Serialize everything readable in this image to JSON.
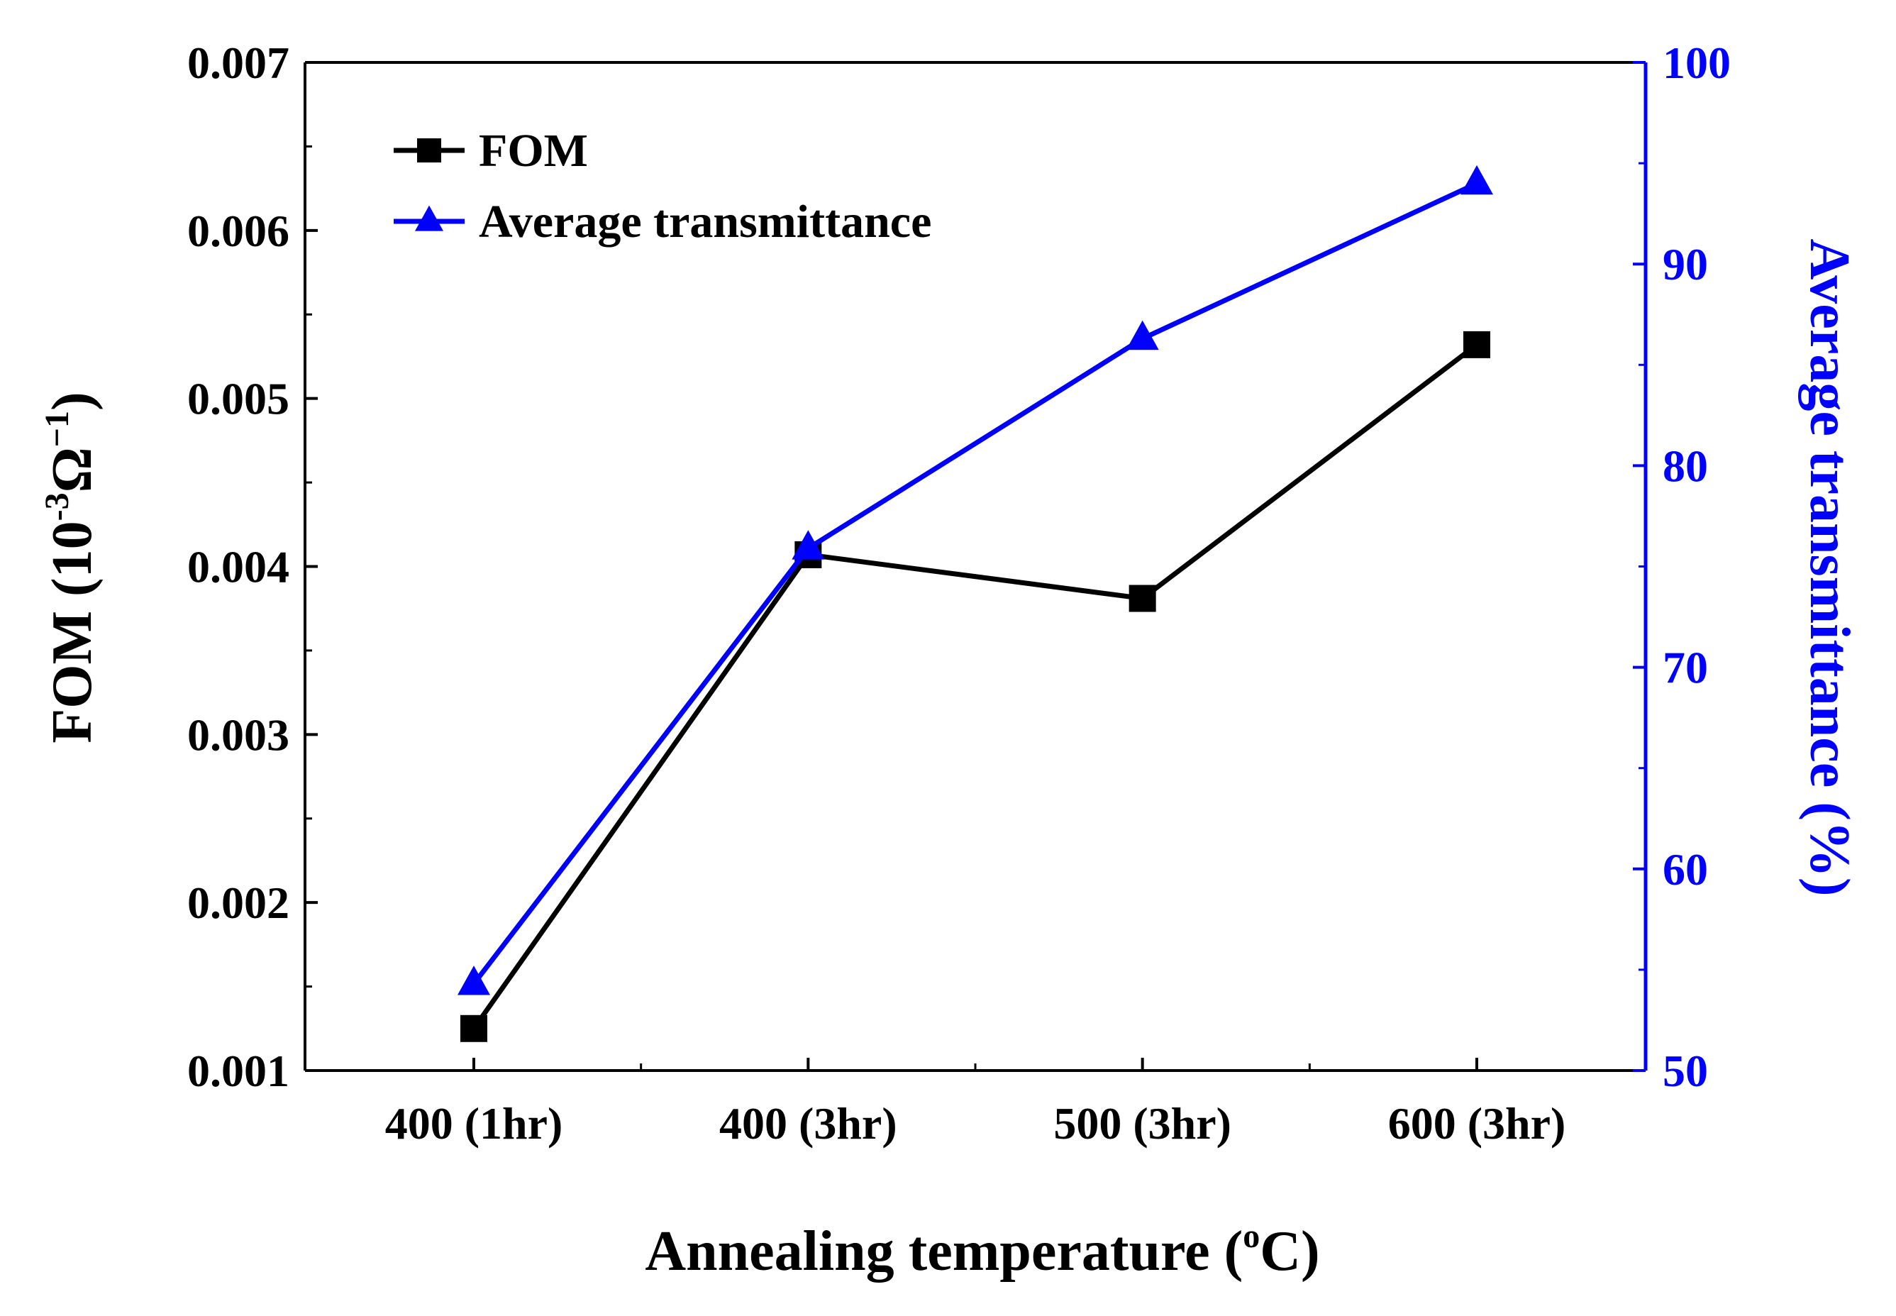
{
  "chart_data": {
    "type": "line",
    "categories": [
      "400 (1hr)",
      "400 (3hr)",
      "500 (3hr)",
      "600 (3hr)"
    ],
    "series": [
      {
        "name": "FOM",
        "axis": "left",
        "marker": "square",
        "color": "#000000",
        "values": [
          0.00125,
          0.00407,
          0.00381,
          0.00532
        ]
      },
      {
        "name": "Average transmittance",
        "axis": "right",
        "marker": "triangle",
        "color": "#0000ff",
        "values": [
          54.3,
          75.9,
          86.3,
          94.0
        ]
      }
    ],
    "xlabel": "Annealing temperature",
    "xlabel_sup": "o",
    "xlabel_suffix": "C)",
    "xlabel_prefix": "(",
    "ylabel_left": {
      "prefix": "FOM (10",
      "sup1": "-3",
      "middle": "Ω",
      "sup2": "−1",
      "suffix": ")"
    },
    "ylabel_right": "Average transmittance (%)",
    "ylim_left": [
      0.001,
      0.007
    ],
    "ylim_right": [
      50,
      100
    ],
    "left_ticks": [
      "0.001",
      "0.002",
      "0.003",
      "0.004",
      "0.005",
      "0.006",
      "0.007"
    ],
    "right_ticks": [
      "50",
      "60",
      "70",
      "80",
      "90",
      "100"
    ],
    "legend_position": "top-left",
    "grid": false
  }
}
